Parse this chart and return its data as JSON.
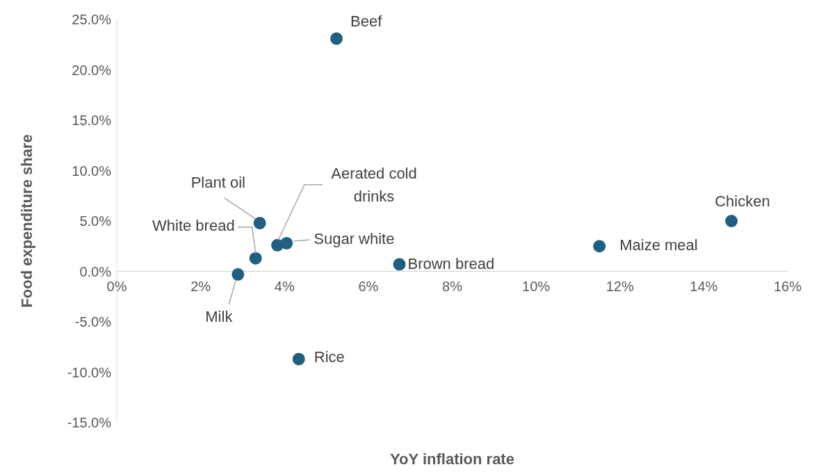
{
  "chart_data": {
    "type": "scatter",
    "xlabel": "YoY inflation rate",
    "ylabel": "Food expenditure share",
    "marker": "circle",
    "x": [
      5.24,
      14.66,
      11.51,
      6.74,
      4.34,
      2.89,
      3.31,
      3.41,
      3.83,
      4.05
    ],
    "values": [
      23.1,
      5.0,
      2.5,
      0.7,
      -8.7,
      -0.3,
      1.3,
      4.8,
      2.6,
      2.8
    ],
    "color": "#1f5f80",
    "xlim": [
      0,
      16
    ],
    "xticks": [
      {
        "value": 0,
        "label": "0%"
      },
      {
        "value": 2,
        "label": "2%"
      },
      {
        "value": 4,
        "label": "4%"
      },
      {
        "value": 6,
        "label": "6%"
      },
      {
        "value": 8,
        "label": "8%"
      },
      {
        "value": 10,
        "label": "10%"
      },
      {
        "value": 12,
        "label": "12%"
      },
      {
        "value": 14,
        "label": "14%"
      },
      {
        "value": 16,
        "label": "16%"
      }
    ],
    "ylim": [
      -15,
      25
    ],
    "yticks": [
      {
        "value": -15,
        "label": "-15.0%"
      },
      {
        "value": -10,
        "label": "-10.0%"
      },
      {
        "value": -5,
        "label": "-5.0%"
      },
      {
        "value": 0,
        "label": "0.0%"
      },
      {
        "value": 5,
        "label": "5.0%"
      },
      {
        "value": 10,
        "label": "10.0%"
      },
      {
        "value": 15,
        "label": "15.0%"
      },
      {
        "value": 20,
        "label": "20.0%"
      },
      {
        "value": 25,
        "label": "25.0%"
      }
    ],
    "annotations": [
      {
        "text": "Beef",
        "x": 5.24,
        "y": 23.1
      },
      {
        "text": "Chicken",
        "x": 14.66,
        "y": 5.0
      },
      {
        "text": "Maize meal",
        "x": 11.51,
        "y": 2.5
      },
      {
        "text": "Brown bread",
        "x": 6.74,
        "y": 0.7
      },
      {
        "text": "Rice",
        "x": 4.34,
        "y": -8.7
      },
      {
        "text": "Milk",
        "x": 2.89,
        "y": -0.3
      },
      {
        "text": "White bread",
        "x": 3.31,
        "y": 1.3
      },
      {
        "text": "Plant oil",
        "x": 3.41,
        "y": 4.8
      },
      {
        "text": "Aerated cold drinks",
        "x": 3.83,
        "y": 2.6
      },
      {
        "text": "Sugar white",
        "x": 4.05,
        "y": 2.8
      }
    ]
  }
}
